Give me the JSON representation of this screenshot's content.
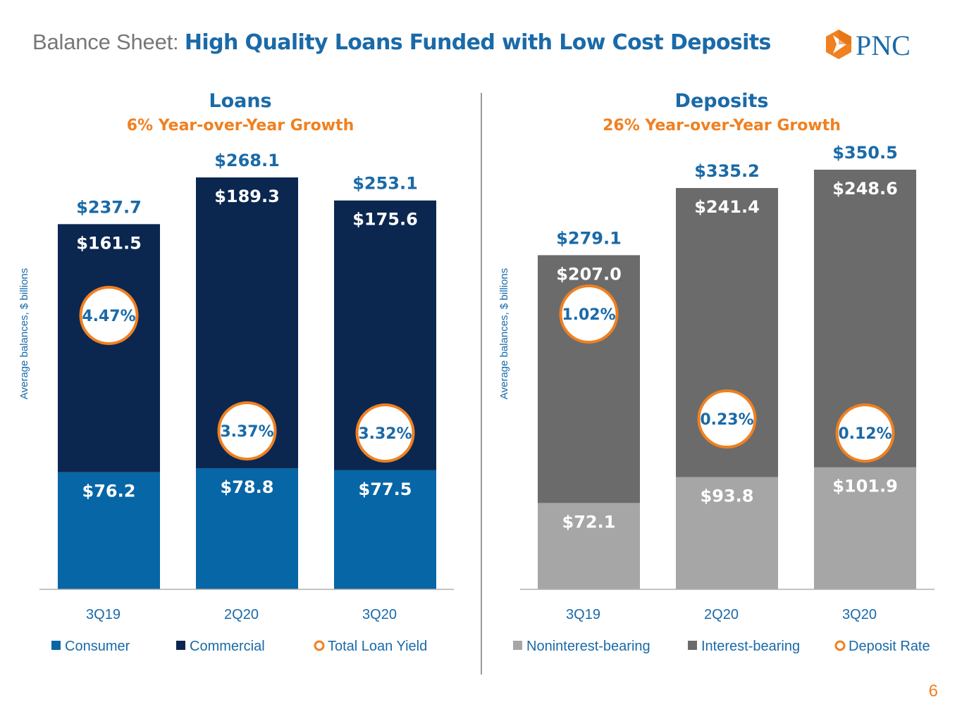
{
  "header": {
    "prefix": "Balance Sheet:",
    "title": "High Quality Loans Funded with Low Cost Deposits",
    "logo_text": "PNC"
  },
  "page_number": "6",
  "colors": {
    "consumer": "#0766a6",
    "commercial": "#0b2750",
    "noninterest": "#a6a6a6",
    "interest": "#6b6b6b",
    "accent": "#f08020",
    "brand_blue": "#1a6aa8"
  },
  "chart_data": [
    {
      "type": "bar",
      "stacked": true,
      "title": "Loans",
      "subtitle": "6% Year-over-Year Growth",
      "ylabel": "Average balances, $ billions",
      "categories": [
        "3Q19",
        "2Q20",
        "3Q20"
      ],
      "series": [
        {
          "name": "Consumer",
          "values": [
            76.2,
            78.8,
            77.5
          ],
          "labels": [
            "$76.2",
            "$78.8",
            "$77.5"
          ],
          "color": "#0766a6"
        },
        {
          "name": "Commercial",
          "values": [
            161.5,
            189.3,
            175.6
          ],
          "labels": [
            "$161.5",
            "$189.3",
            "$175.6"
          ],
          "color": "#0b2750"
        }
      ],
      "totals": [
        237.7,
        268.1,
        253.1
      ],
      "total_labels": [
        "$237.7",
        "$268.1",
        "$253.1"
      ],
      "rate_series": {
        "name": "Total Loan Yield",
        "labels": [
          "4.47%",
          "3.37%",
          "3.32%"
        ]
      },
      "ylim": [
        0,
        280
      ],
      "legend_position": "bottom"
    },
    {
      "type": "bar",
      "stacked": true,
      "title": "Deposits",
      "subtitle": "26% Year-over-Year Growth",
      "ylabel": "Average balances, $ billions",
      "categories": [
        "3Q19",
        "2Q20",
        "3Q20"
      ],
      "series": [
        {
          "name": "Noninterest-bearing",
          "values": [
            72.1,
            93.8,
            101.9
          ],
          "labels": [
            "$72.1",
            "$93.8",
            "$101.9"
          ],
          "color": "#a6a6a6"
        },
        {
          "name": "Interest-bearing",
          "values": [
            207.0,
            241.4,
            248.6
          ],
          "labels": [
            "$207.0",
            "$241.4",
            "$248.6"
          ],
          "color": "#6b6b6b"
        }
      ],
      "totals": [
        279.1,
        335.2,
        350.5
      ],
      "total_labels": [
        "$279.1",
        "$335.2",
        "$350.5"
      ],
      "rate_series": {
        "name": "Deposit Rate",
        "labels": [
          "1.02%",
          "0.23%",
          "0.12%"
        ]
      },
      "ylim": [
        0,
        365
      ],
      "legend_position": "bottom"
    }
  ]
}
